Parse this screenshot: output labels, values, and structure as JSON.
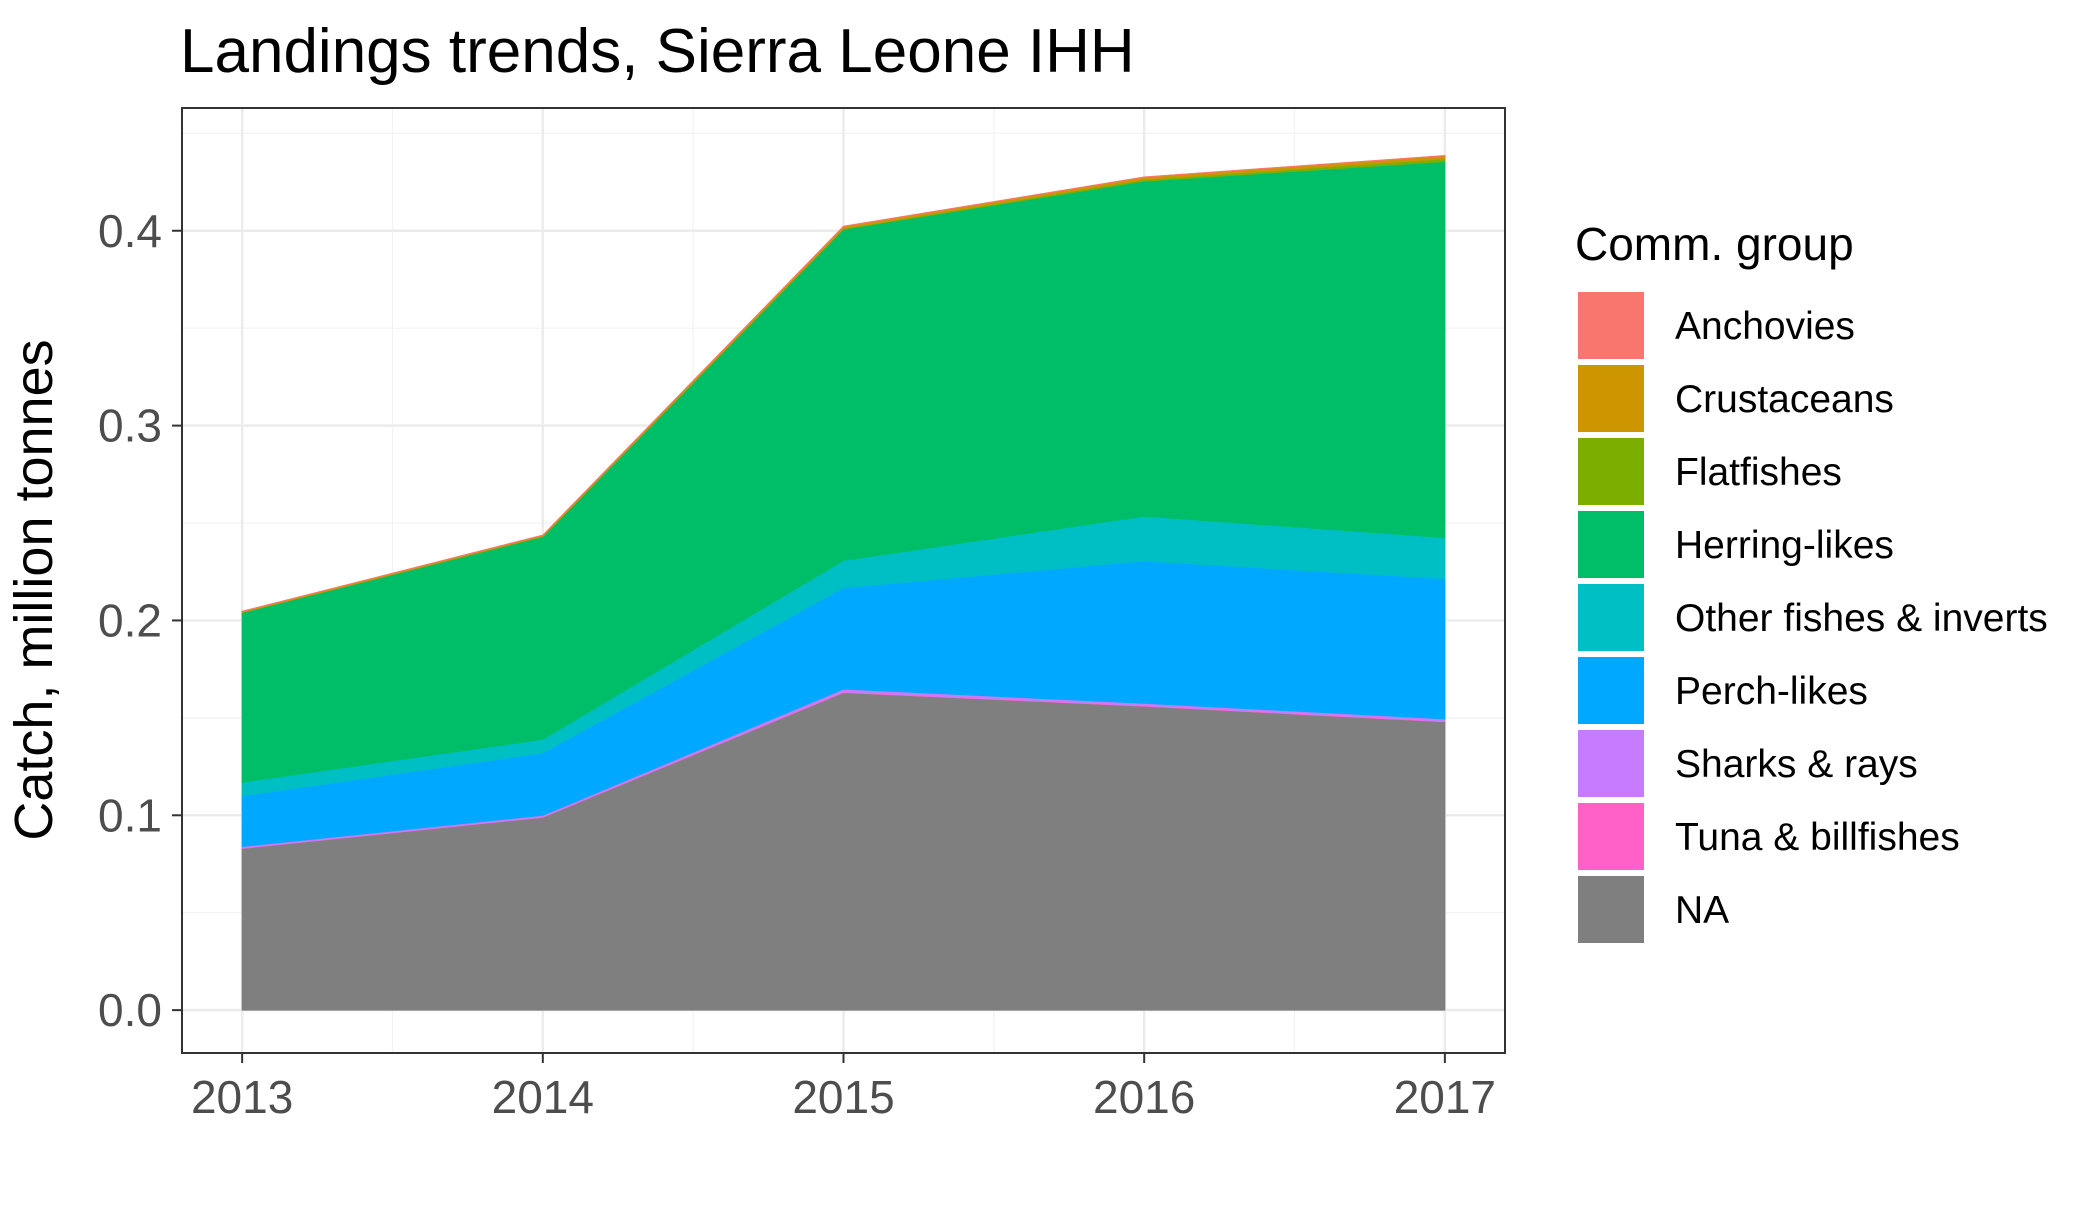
{
  "chart_data": {
    "type": "area",
    "stacked": true,
    "title": "Landings trends, Sierra Leone IHH",
    "xlabel": "",
    "ylabel": "Catch, million tonnes",
    "x": [
      2013,
      2014,
      2015,
      2016,
      2017
    ],
    "x_ticks": [
      "2013",
      "2014",
      "2015",
      "2016",
      "2017"
    ],
    "y_ticks": [
      "0.0",
      "0.1",
      "0.2",
      "0.3",
      "0.4"
    ],
    "ylim": [
      -0.022,
      0.463
    ],
    "xlim": [
      2012.8,
      2017.2
    ],
    "grid": true,
    "legend_position": "right",
    "legend_title": "Comm. group",
    "legend_order": [
      "Anchovies",
      "Crustaceans",
      "Flatfishes",
      "Herring-likes",
      "Other fishes & inverts",
      "Perch-likes",
      "Sharks & rays",
      "Tuna & billfishes",
      "NA"
    ],
    "series": [
      {
        "name": "NA",
        "color": "#7f7f7f",
        "values": [
          0.083,
          0.099,
          0.163,
          0.156,
          0.148
        ]
      },
      {
        "name": "Tuna & billfishes",
        "color": "#ff61c9",
        "values": [
          0.0002,
          0.0002,
          0.0003,
          0.0003,
          0.0003
        ]
      },
      {
        "name": "Sharks & rays",
        "color": "#c77cff",
        "values": [
          0.0008,
          0.0008,
          0.0015,
          0.0012,
          0.0012
        ]
      },
      {
        "name": "Perch-likes",
        "color": "#00a9ff",
        "values": [
          0.026,
          0.032,
          0.052,
          0.073,
          0.072
        ]
      },
      {
        "name": "Other fishes & inverts",
        "color": "#00bfc4",
        "values": [
          0.007,
          0.007,
          0.014,
          0.023,
          0.021
        ]
      },
      {
        "name": "Herring-likes",
        "color": "#00be67",
        "values": [
          0.087,
          0.104,
          0.17,
          0.172,
          0.193
        ]
      },
      {
        "name": "Flatfishes",
        "color": "#7cae00",
        "values": [
          0.0002,
          0.0003,
          0.0004,
          0.0008,
          0.0015
        ]
      },
      {
        "name": "Crustaceans",
        "color": "#cd9600",
        "values": [
          0.0004,
          0.0004,
          0.001,
          0.0012,
          0.0015
        ]
      },
      {
        "name": "Anchovies",
        "color": "#f8766d",
        "values": [
          0.0001,
          0.0001,
          0.0001,
          0.0001,
          0.0001
        ]
      }
    ]
  }
}
